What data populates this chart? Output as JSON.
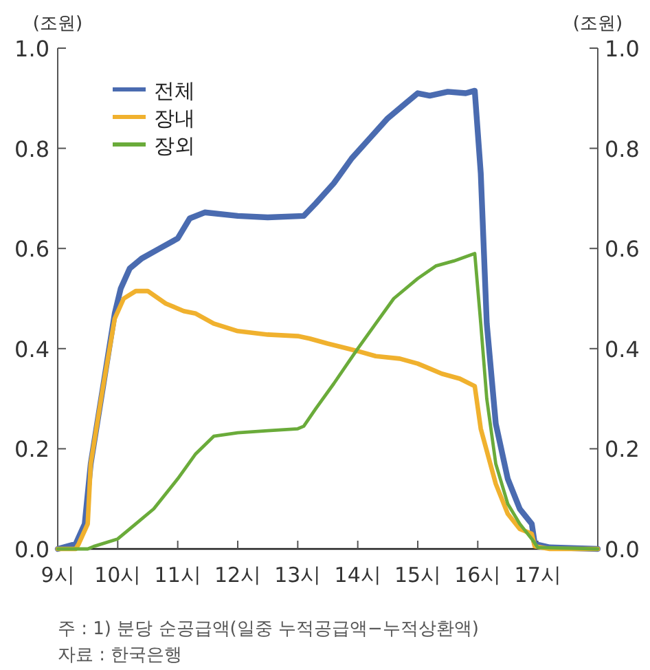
{
  "chart_data": {
    "type": "line",
    "ylabel": "(조원)",
    "y2label": "(조원)",
    "x": [
      9,
      9.3,
      9.45,
      9.55,
      9.75,
      9.95,
      10.05,
      10.2,
      10.4,
      10.7,
      11.0,
      11.2,
      11.45,
      12.0,
      12.5,
      13.1,
      13.3,
      13.6,
      13.9,
      14.2,
      14.5,
      14.8,
      15.0,
      15.2,
      15.5,
      15.8,
      15.95,
      16.05,
      16.15,
      16.3,
      16.5,
      16.7,
      16.9,
      16.95,
      17.2,
      18
    ],
    "series": [
      {
        "name": "전체",
        "color": "#4a6bb0",
        "values": [
          0,
          0.01,
          0.05,
          0.17,
          0.32,
          0.47,
          0.52,
          0.56,
          0.58,
          0.6,
          0.62,
          0.66,
          0.672,
          0.665,
          0.662,
          0.665,
          0.69,
          0.73,
          0.78,
          0.82,
          0.86,
          0.89,
          0.91,
          0.905,
          0.913,
          0.91,
          0.915,
          0.75,
          0.45,
          0.25,
          0.14,
          0.08,
          0.05,
          0.01,
          0.003,
          0
        ]
      },
      {
        "name": "장내",
        "color": "#f0b12e",
        "x": [
          9,
          9.3,
          9.35,
          9.5,
          9.55,
          9.75,
          9.95,
          10.1,
          10.3,
          10.5,
          10.8,
          11.1,
          11.3,
          11.6,
          12.0,
          12.5,
          13.0,
          13.2,
          13.5,
          14.0,
          14.3,
          14.7,
          15.0,
          15.2,
          15.4,
          15.7,
          15.95,
          16.05,
          16.3,
          16.5,
          16.7,
          16.9,
          16.95,
          17.2,
          18
        ],
        "values": [
          0,
          0,
          0.01,
          0.05,
          0.17,
          0.32,
          0.46,
          0.5,
          0.515,
          0.515,
          0.49,
          0.475,
          0.47,
          0.45,
          0.435,
          0.428,
          0.425,
          0.42,
          0.41,
          0.395,
          0.385,
          0.38,
          0.37,
          0.36,
          0.35,
          0.34,
          0.325,
          0.24,
          0.13,
          0.07,
          0.04,
          0.03,
          0.005,
          0,
          0
        ]
      },
      {
        "name": "장외",
        "color": "#6aab3a",
        "x": [
          9,
          9.5,
          9.6,
          10.0,
          10.3,
          10.6,
          11.0,
          11.3,
          11.6,
          12.0,
          12.5,
          13.0,
          13.1,
          13.3,
          13.6,
          14.0,
          14.3,
          14.6,
          15.0,
          15.3,
          15.6,
          15.95,
          16.05,
          16.15,
          16.3,
          16.5,
          16.7,
          16.9,
          17.0,
          18
        ],
        "values": [
          0,
          0,
          0.005,
          0.02,
          0.05,
          0.08,
          0.14,
          0.19,
          0.225,
          0.232,
          0.236,
          0.24,
          0.245,
          0.28,
          0.33,
          0.4,
          0.45,
          0.5,
          0.54,
          0.565,
          0.575,
          0.59,
          0.45,
          0.3,
          0.17,
          0.09,
          0.05,
          0.02,
          0.003,
          0
        ]
      }
    ],
    "xlim": [
      9,
      18
    ],
    "xticks": [
      {
        "value": 9,
        "label": "9시"
      },
      {
        "value": 10,
        "label": "10시"
      },
      {
        "value": 11,
        "label": "11시"
      },
      {
        "value": 12,
        "label": "12시"
      },
      {
        "value": 13,
        "label": "13시"
      },
      {
        "value": 14,
        "label": "14시"
      },
      {
        "value": 15,
        "label": "15시"
      },
      {
        "value": 16,
        "label": "16시"
      },
      {
        "value": 17,
        "label": "17시"
      }
    ],
    "ylim": [
      0,
      1
    ],
    "yticks": [
      {
        "value": 0,
        "label": "0.0"
      },
      {
        "value": 0.2,
        "label": "0.2"
      },
      {
        "value": 0.4,
        "label": "0.4"
      },
      {
        "value": 0.6,
        "label": "0.6"
      },
      {
        "value": 0.8,
        "label": "0.8"
      },
      {
        "value": 1,
        "label": "1.0"
      }
    ],
    "y2lim": [
      0,
      1
    ],
    "y2ticks": [
      {
        "value": 0,
        "label": "0.0"
      },
      {
        "value": 0.2,
        "label": "0.2"
      },
      {
        "value": 0.4,
        "label": "0.4"
      },
      {
        "value": 0.6,
        "label": "0.6"
      },
      {
        "value": 0.8,
        "label": "0.8"
      },
      {
        "value": 1,
        "label": "1.0"
      }
    ],
    "legend": "top left",
    "grid": false,
    "marker": "none",
    "line_style": "solid",
    "annotations": [
      "주 : 1) 분당 순공급액(일중 누적공급액−누적상환액)",
      "자료 : 한국은행"
    ]
  }
}
